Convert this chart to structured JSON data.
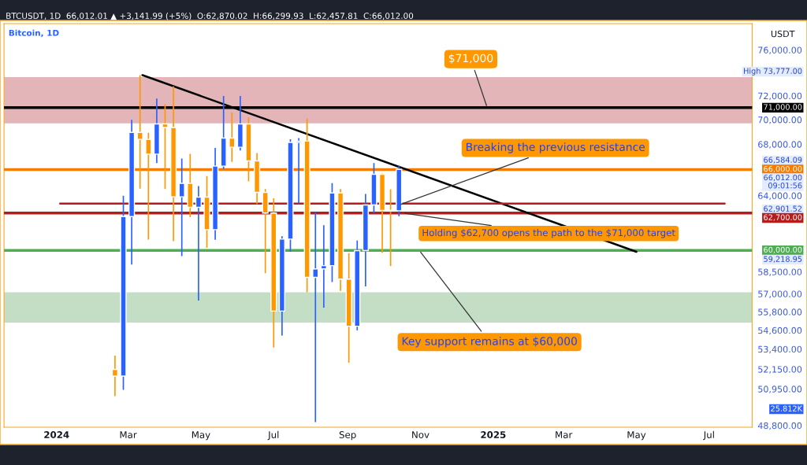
{
  "chart_data": {
    "type": "candlestick",
    "title": "Bitcoin, 1D",
    "subtitle": "BTCUSDT, 1D  66,012.01 ▲ +3,141.99 (+5%)  O:62,870.02  H:66,299.93  L:62,457.81  C:66,012.00",
    "ylabel": "USDT",
    "x": [
      "2024-02-19",
      "2024-02-26",
      "2024-03-04",
      "2024-03-11",
      "2024-03-18",
      "2024-03-25",
      "2024-04-01",
      "2024-04-08",
      "2024-04-15",
      "2024-04-22",
      "2024-04-29",
      "2024-05-06",
      "2024-05-13",
      "2024-05-20",
      "2024-05-27",
      "2024-06-03",
      "2024-06-10",
      "2024-06-17",
      "2024-06-24",
      "2024-07-01",
      "2024-07-08",
      "2024-07-15",
      "2024-07-22",
      "2024-07-29",
      "2024-08-05",
      "2024-08-12",
      "2024-08-19",
      "2024-08-26",
      "2024-09-02",
      "2024-09-09",
      "2024-09-16",
      "2024-09-23",
      "2024-09-30",
      "2024-10-07",
      "2024-10-14"
    ],
    "ohlc": [
      [
        52140,
        52990,
        50520,
        51730
      ],
      [
        51730,
        64000,
        50900,
        62440
      ],
      [
        62440,
        69990,
        59000,
        68960
      ],
      [
        68960,
        73777,
        64530,
        68390
      ],
      [
        68390,
        68920,
        60760,
        67210
      ],
      [
        67210,
        71770,
        66500,
        69650
      ],
      [
        69650,
        71290,
        64500,
        69360
      ],
      [
        69360,
        72800,
        60660,
        63910
      ],
      [
        63910,
        66870,
        59600,
        64940
      ],
      [
        64940,
        67230,
        62400,
        63120
      ],
      [
        63120,
        64730,
        56550,
        63890
      ],
      [
        63890,
        65500,
        60180,
        61480
      ],
      [
        61480,
        67700,
        60750,
        66270
      ],
      [
        66270,
        71980,
        66050,
        68500
      ],
      [
        68500,
        70600,
        66600,
        67760
      ],
      [
        67760,
        71990,
        67500,
        69650
      ],
      [
        69650,
        70200,
        65080,
        66680
      ],
      [
        66680,
        67300,
        63380,
        64250
      ],
      [
        64250,
        64500,
        58400,
        62700
      ],
      [
        62700,
        63800,
        53500,
        55850
      ],
      [
        55850,
        61000,
        54260,
        60800
      ],
      [
        60800,
        68400,
        59900,
        68150
      ],
      [
        68150,
        68500,
        63400,
        68250
      ],
      [
        68250,
        70080,
        57100,
        58120
      ],
      [
        58120,
        62750,
        49000,
        58700
      ],
      [
        58700,
        61800,
        56080,
        58930
      ],
      [
        58930,
        64950,
        57800,
        64200
      ],
      [
        64200,
        64500,
        57200,
        58000
      ],
      [
        58000,
        59800,
        52550,
        54860
      ],
      [
        54860,
        60700,
        54600,
        59980
      ],
      [
        59980,
        64130,
        57500,
        63300
      ],
      [
        63300,
        66500,
        62700,
        65630
      ],
      [
        65630,
        65700,
        59830,
        62900
      ],
      [
        62900,
        64480,
        58900,
        62850
      ],
      [
        62870,
        66299.93,
        62457.81,
        66012
      ]
    ],
    "colors": [
      "#ff9800",
      "#2962ff",
      "#2962ff",
      "#ff9800",
      "#ff9800",
      "#2962ff",
      "#ff9800",
      "#ff9800",
      "#2962ff",
      "#ff9800",
      "#2962ff",
      "#ff9800",
      "#2962ff",
      "#2962ff",
      "#ff9800",
      "#2962ff",
      "#ff9800",
      "#ff9800",
      "#ff9800",
      "#ff9800",
      "#2962ff",
      "#2962ff",
      "#2962ff",
      "#ff9800",
      "#2962ff",
      "#2962ff",
      "#2962ff",
      "#ff9800",
      "#ff9800",
      "#2962ff",
      "#2962ff",
      "#2962ff",
      "#ff9800",
      "#ff9800",
      "#2962ff"
    ],
    "series": [
      {
        "type": "line",
        "x": [
          "2024-03-13",
          "2025-05-01"
        ],
        "values": [
          73777,
          59900
        ],
        "color": "#000000"
      },
      {
        "type": "line",
        "x": [
          "2024-01-04",
          "2025-07-14"
        ],
        "values": [
          63400,
          63400
        ],
        "color": "#b71c1c"
      }
    ],
    "ref_lines": [
      {
        "axis": "y",
        "value": 71000,
        "label": "71,000.00",
        "color": "#000000"
      },
      {
        "axis": "y",
        "value": 66000,
        "label": "66,000.00",
        "color": "#f57c00"
      },
      {
        "axis": "y",
        "value": 62700,
        "label": "62,700.00",
        "color": "#b71c1c"
      },
      {
        "axis": "y",
        "value": 60000,
        "label": "60,000.00",
        "color": "#4caf50"
      }
    ],
    "bands": [
      {
        "axis": "y",
        "from": 69700,
        "to": 73600,
        "color": "#e3b5b8"
      },
      {
        "axis": "y",
        "from": 55100,
        "to": 57100,
        "color": "#c3dec5"
      }
    ],
    "annotations": [
      {
        "text": "$71,000",
        "x": "2024-12-27",
        "y": 71000
      },
      {
        "text": "Breaking the previous resistance",
        "x": "2024-10-14",
        "y": 63300
      },
      {
        "text": "Holding $62,700 opens the path to the $71,000 target",
        "x": "2024-10-17",
        "y": 62700
      },
      {
        "text": "Key support remains at $60,000",
        "x": "2024-10-31",
        "y": 60000
      },
      "High 73,777.00",
      "66,584.09",
      "66,012.00\n09:01:56",
      "62,901.52",
      "59,218.95",
      "25.812K"
    ],
    "log": "y",
    "xlim": [
      "2023-11-18",
      "2025-08-06"
    ],
    "xticks": [
      {
        "value": "2024-01-01",
        "label": "2024"
      },
      {
        "value": "2024-03-01",
        "label": "Mar"
      },
      {
        "value": "2024-05-01",
        "label": "May"
      },
      {
        "value": "2024-07-01",
        "label": "Jul"
      },
      {
        "value": "2024-09-01",
        "label": "Sep"
      },
      {
        "value": "2024-11-01",
        "label": "Nov"
      },
      {
        "value": "2025-01-01",
        "label": "2025"
      },
      {
        "value": "2025-03-01",
        "label": "Mar"
      },
      {
        "value": "2025-05-01",
        "label": "May"
      },
      {
        "value": "2025-07-01",
        "label": "Jul"
      }
    ],
    "ylim": [
      48700,
      78400
    ],
    "yticks": [
      {
        "value": 76000,
        "label": "76,000.00"
      },
      {
        "value": 72000,
        "label": "72,000.00"
      },
      {
        "value": 70000,
        "label": "70,000.00"
      },
      {
        "value": 68000,
        "label": "68,000.00"
      },
      {
        "value": 64000,
        "label": "64,000.00"
      },
      {
        "value": 58500,
        "label": "58,500.00"
      },
      {
        "value": 57000,
        "label": "57,000.00"
      },
      {
        "value": 55800,
        "label": "55,800.00"
      },
      {
        "value": 54600,
        "label": "54,600.00"
      },
      {
        "value": 53400,
        "label": "53,400.00"
      },
      {
        "value": 52150,
        "label": "52,150.00"
      },
      {
        "value": 50950,
        "label": "50,950.00"
      },
      {
        "value": 48800,
        "label": "48,800.00"
      }
    ]
  }
}
